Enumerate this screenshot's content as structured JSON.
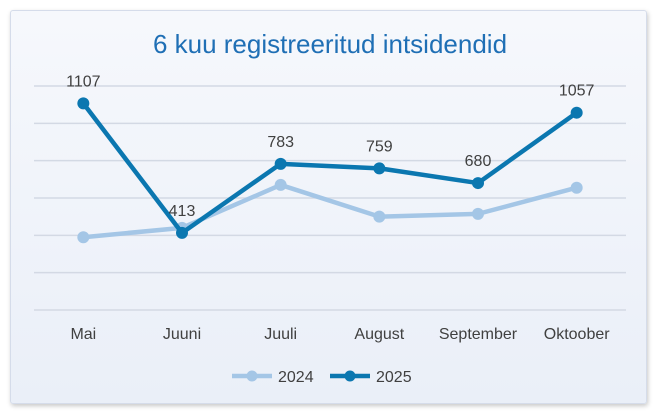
{
  "chart_data": {
    "type": "line",
    "title": "6 kuu registreeritud intsidendid",
    "xlabel": "",
    "ylabel": "",
    "categories": [
      "Mai",
      "Juuni",
      "Juuli",
      "August",
      "September",
      "Oktoober"
    ],
    "ylim": [
      0,
      1200
    ],
    "grid": true,
    "legend_position": "bottom",
    "series": [
      {
        "name": "2024",
        "values": [
          390,
          440,
          670,
          500,
          515,
          655
        ],
        "color": "#a4c6e6",
        "show_labels": false
      },
      {
        "name": "2025",
        "values": [
          1107,
          413,
          783,
          759,
          680,
          1057
        ],
        "color": "#0b77b0",
        "show_labels": true
      }
    ]
  }
}
